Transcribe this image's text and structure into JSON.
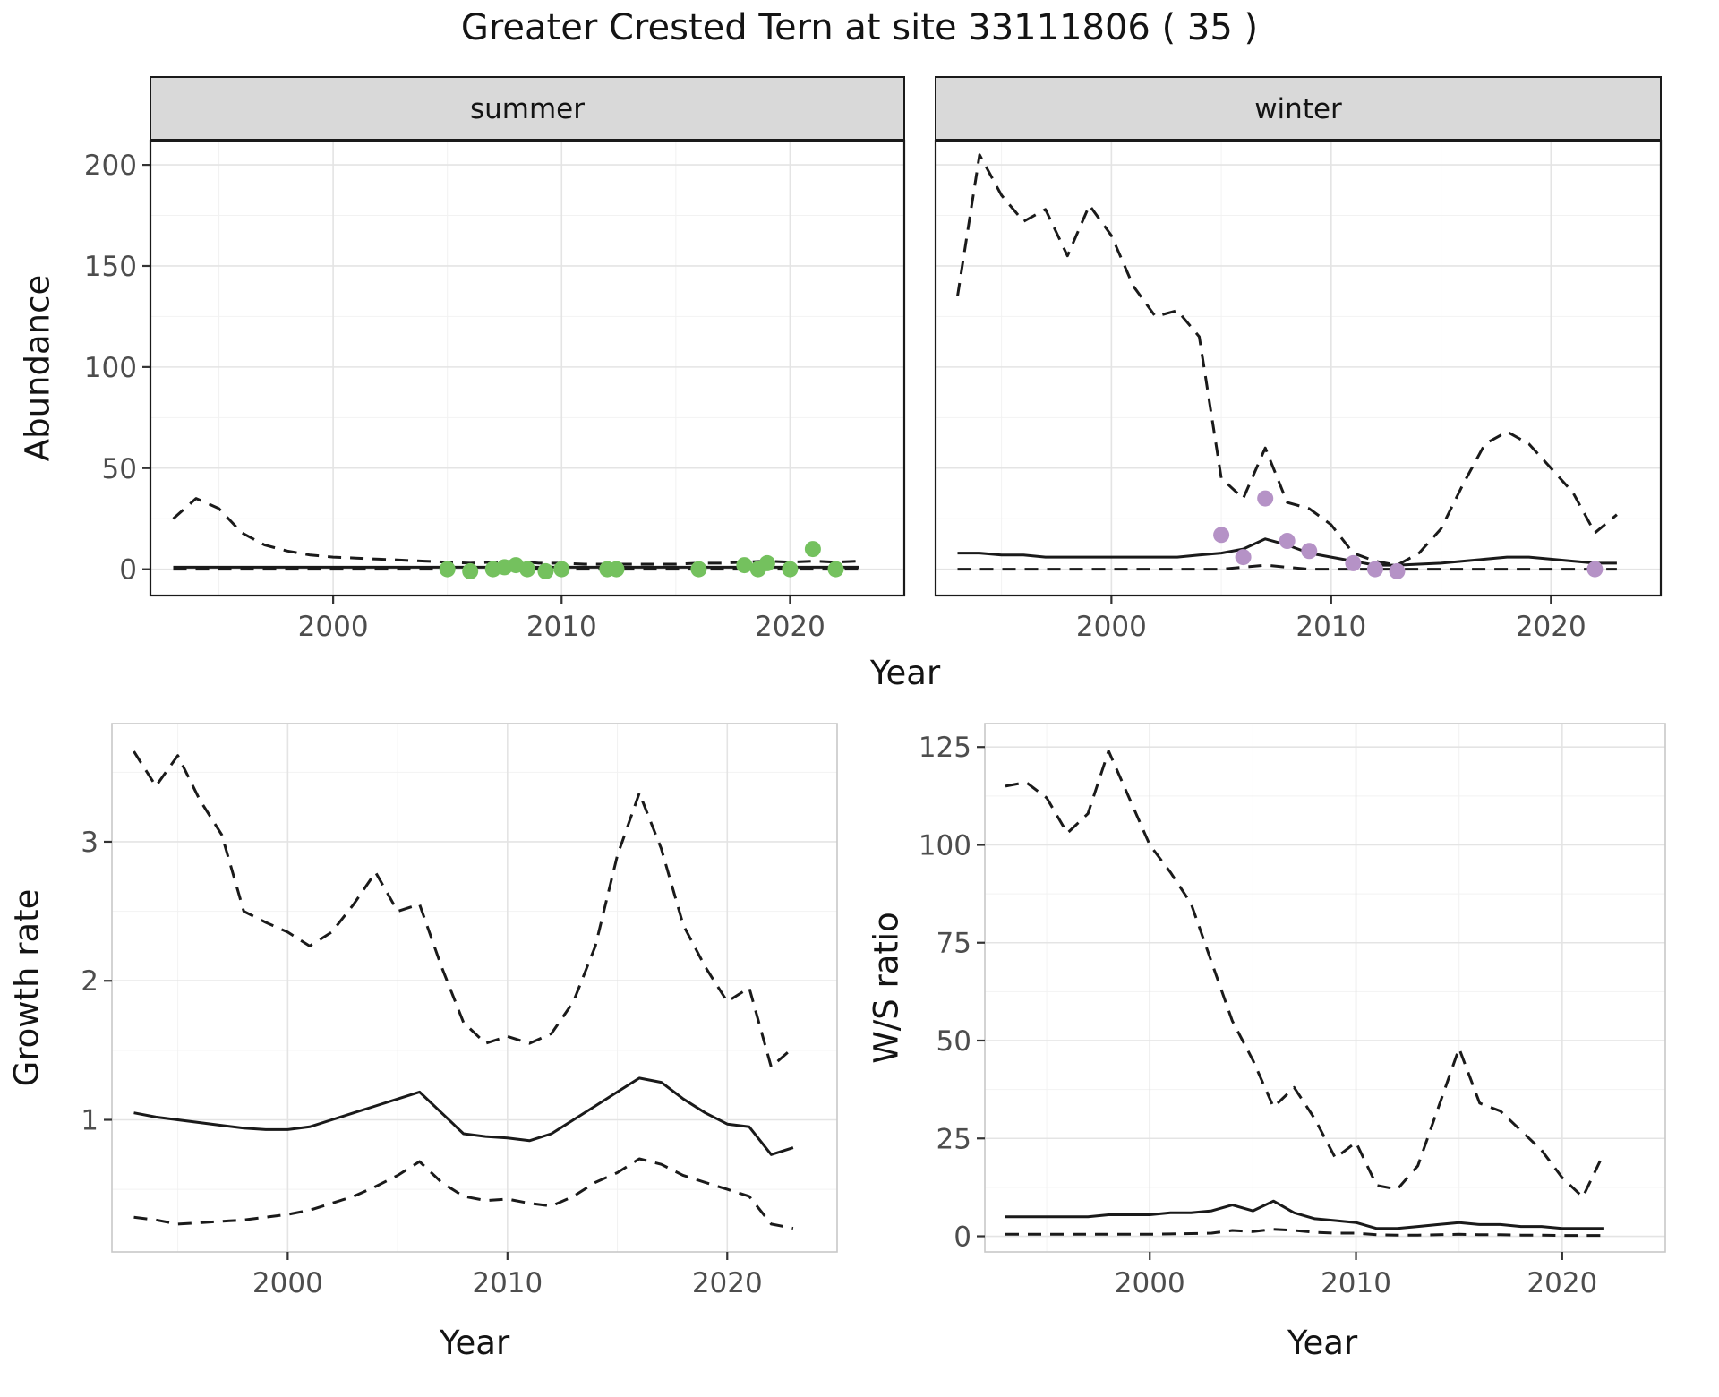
{
  "title": "Greater Crested Tern at site 33111806 ( 35 )",
  "axis_labels": {
    "x": "Year",
    "abundance": "Abundance",
    "growth_rate": "Growth rate",
    "ws_ratio": "W/S ratio"
  },
  "facet_labels": [
    "summer",
    "winter"
  ],
  "colors": {
    "summer_points": "#74c15e",
    "winter_points": "#b592c6",
    "line": "#1a1a1a",
    "strip_bg": "#d9d9d9",
    "strip_border": "#1a1a1a",
    "grid_major": "#e4e4e4",
    "grid_minor": "#f2f2f2",
    "tick_label": "#4d4d4d",
    "axis_tick": "#333333"
  },
  "chart_data": [
    {
      "id": "abundance_summer",
      "type": "line",
      "facet": "summer",
      "xlabel": "Year",
      "ylabel": "Abundance",
      "xlim": [
        1992,
        2025
      ],
      "ylim": [
        -13,
        212
      ],
      "xticks": [
        2000,
        2010,
        2020
      ],
      "yticks": [
        0,
        50,
        100,
        150,
        200
      ],
      "series": [
        {
          "name": "upper_ci",
          "linestyle": "dashed",
          "x": [
            1993,
            1994,
            1995,
            1996,
            1997,
            1998,
            1999,
            2000,
            2001,
            2002,
            2003,
            2004,
            2005,
            2006,
            2007,
            2008,
            2009,
            2010,
            2011,
            2012,
            2013,
            2014,
            2015,
            2016,
            2017,
            2018,
            2019,
            2020,
            2021,
            2022,
            2023
          ],
          "y": [
            25,
            35,
            30,
            18,
            12,
            9,
            7,
            6,
            5.5,
            5,
            4.5,
            4,
            3.5,
            3,
            3.5,
            4,
            3,
            3,
            2.5,
            2.5,
            2.5,
            2.5,
            2.5,
            3,
            3,
            3.5,
            4,
            3.5,
            4,
            3.5,
            4
          ]
        },
        {
          "name": "estimate",
          "linestyle": "solid",
          "x": [
            1993,
            1994,
            1995,
            1996,
            1997,
            1998,
            1999,
            2000,
            2001,
            2002,
            2003,
            2004,
            2005,
            2006,
            2007,
            2008,
            2009,
            2010,
            2011,
            2012,
            2013,
            2014,
            2015,
            2016,
            2017,
            2018,
            2019,
            2020,
            2021,
            2022,
            2023
          ],
          "y": [
            1,
            1,
            1,
            1,
            1,
            1,
            1,
            1,
            1,
            1,
            1,
            1,
            1,
            1,
            1,
            1,
            1,
            1,
            1,
            1,
            1,
            1,
            1,
            1,
            1,
            1,
            1,
            1,
            1,
            1,
            1
          ]
        },
        {
          "name": "lower_ci",
          "linestyle": "dashed",
          "x": [
            1993,
            1994,
            1995,
            1996,
            1997,
            1998,
            1999,
            2000,
            2001,
            2002,
            2003,
            2004,
            2005,
            2006,
            2007,
            2008,
            2009,
            2010,
            2011,
            2012,
            2013,
            2014,
            2015,
            2016,
            2017,
            2018,
            2019,
            2020,
            2021,
            2022,
            2023
          ],
          "y": [
            0,
            0,
            0,
            0,
            0,
            0,
            0,
            0,
            0,
            0,
            0,
            0,
            0,
            0,
            0,
            0,
            0,
            0,
            0,
            0,
            0,
            0,
            0,
            0,
            0,
            0,
            0,
            0,
            0,
            0,
            0
          ]
        }
      ],
      "points": [
        {
          "name": "observed_counts",
          "color_key": "summer_points",
          "x": [
            2005,
            2006,
            2007,
            2007.5,
            2008,
            2008.5,
            2009.3,
            2010,
            2012,
            2012.4,
            2016,
            2018,
            2018.6,
            2019,
            2020,
            2021,
            2022
          ],
          "y": [
            0,
            -1,
            0,
            1,
            2,
            0,
            -1,
            0,
            0,
            0,
            0,
            2,
            0,
            3,
            0,
            10,
            0
          ]
        }
      ]
    },
    {
      "id": "abundance_winter",
      "type": "line",
      "facet": "winter",
      "xlabel": "Year",
      "ylabel": "Abundance",
      "xlim": [
        1992,
        2025
      ],
      "ylim": [
        -13,
        212
      ],
      "xticks": [
        2000,
        2010,
        2020
      ],
      "yticks": [
        0,
        50,
        100,
        150,
        200
      ],
      "series": [
        {
          "name": "upper_ci",
          "linestyle": "dashed",
          "x": [
            1993,
            1994,
            1995,
            1996,
            1997,
            1998,
            1999,
            2000,
            2001,
            2002,
            2003,
            2004,
            2005,
            2006,
            2007,
            2008,
            2009,
            2010,
            2011,
            2012,
            2013,
            2014,
            2015,
            2016,
            2017,
            2018,
            2019,
            2020,
            2021,
            2022,
            2023
          ],
          "y": [
            135,
            205,
            185,
            172,
            178,
            155,
            180,
            165,
            140,
            125,
            128,
            115,
            45,
            35,
            60,
            33,
            30,
            22,
            8,
            4,
            2,
            8,
            20,
            42,
            62,
            68,
            62,
            50,
            38,
            18,
            27
          ]
        },
        {
          "name": "estimate",
          "linestyle": "solid",
          "x": [
            1993,
            1994,
            1995,
            1996,
            1997,
            1998,
            1999,
            2000,
            2001,
            2002,
            2003,
            2004,
            2005,
            2006,
            2007,
            2008,
            2009,
            2010,
            2011,
            2012,
            2013,
            2014,
            2015,
            2016,
            2017,
            2018,
            2019,
            2020,
            2021,
            2022,
            2023
          ],
          "y": [
            8,
            8,
            7,
            7,
            6,
            6,
            6,
            6,
            6,
            6,
            6,
            7,
            8,
            10,
            15,
            12,
            8,
            6,
            4,
            2,
            2,
            2.5,
            3,
            4,
            5,
            6,
            6,
            5,
            4,
            3,
            3
          ]
        },
        {
          "name": "lower_ci",
          "linestyle": "dashed",
          "x": [
            1993,
            1994,
            1995,
            1996,
            1997,
            1998,
            1999,
            2000,
            2001,
            2002,
            2003,
            2004,
            2005,
            2006,
            2007,
            2008,
            2009,
            2010,
            2011,
            2012,
            2013,
            2014,
            2015,
            2016,
            2017,
            2018,
            2019,
            2020,
            2021,
            2022,
            2023
          ],
          "y": [
            0,
            0,
            0,
            0,
            0,
            0,
            0,
            0,
            0,
            0,
            0,
            0,
            0,
            1,
            2,
            1,
            0,
            0,
            0,
            0,
            0,
            0,
            0,
            0,
            0,
            0,
            0,
            0,
            0,
            0,
            0
          ]
        }
      ],
      "points": [
        {
          "name": "observed_counts",
          "color_key": "winter_points",
          "x": [
            2005,
            2006,
            2007,
            2008,
            2009,
            2011,
            2012,
            2013,
            2022
          ],
          "y": [
            17,
            6,
            35,
            14,
            9,
            3,
            0,
            -1,
            0
          ]
        }
      ]
    },
    {
      "id": "growth_rate",
      "type": "line",
      "xlabel": "Year",
      "ylabel": "Growth rate",
      "xlim": [
        1992,
        2025
      ],
      "ylim": [
        0.05,
        3.85
      ],
      "xticks": [
        2000,
        2010,
        2020
      ],
      "yticks": [
        1,
        2,
        3
      ],
      "series": [
        {
          "name": "upper_ci",
          "linestyle": "dashed",
          "x": [
            1993,
            1994,
            1995,
            1996,
            1997,
            1998,
            1999,
            2000,
            2001,
            2002,
            2003,
            2004,
            2005,
            2006,
            2007,
            2008,
            2009,
            2010,
            2011,
            2012,
            2013,
            2014,
            2015,
            2016,
            2017,
            2018,
            2019,
            2020,
            2021,
            2022,
            2023
          ],
          "y": [
            3.65,
            3.4,
            3.62,
            3.3,
            3.05,
            2.5,
            2.42,
            2.35,
            2.25,
            2.35,
            2.55,
            2.78,
            2.5,
            2.55,
            2.1,
            1.7,
            1.55,
            1.6,
            1.55,
            1.62,
            1.85,
            2.25,
            2.9,
            3.35,
            2.95,
            2.4,
            2.1,
            1.85,
            1.95,
            1.38,
            1.52
          ]
        },
        {
          "name": "estimate",
          "linestyle": "solid",
          "x": [
            1993,
            1994,
            1995,
            1996,
            1997,
            1998,
            1999,
            2000,
            2001,
            2002,
            2003,
            2004,
            2005,
            2006,
            2007,
            2008,
            2009,
            2010,
            2011,
            2012,
            2013,
            2014,
            2015,
            2016,
            2017,
            2018,
            2019,
            2020,
            2021,
            2022,
            2023
          ],
          "y": [
            1.05,
            1.02,
            1.0,
            0.98,
            0.96,
            0.94,
            0.93,
            0.93,
            0.95,
            1.0,
            1.05,
            1.1,
            1.15,
            1.2,
            1.05,
            0.9,
            0.88,
            0.87,
            0.85,
            0.9,
            1.0,
            1.1,
            1.2,
            1.3,
            1.27,
            1.15,
            1.05,
            0.97,
            0.95,
            0.75,
            0.8
          ]
        },
        {
          "name": "lower_ci",
          "linestyle": "dashed",
          "x": [
            1993,
            1994,
            1995,
            1996,
            1997,
            1998,
            1999,
            2000,
            2001,
            2002,
            2003,
            2004,
            2005,
            2006,
            2007,
            2008,
            2009,
            2010,
            2011,
            2012,
            2013,
            2014,
            2015,
            2016,
            2017,
            2018,
            2019,
            2020,
            2021,
            2022,
            2023
          ],
          "y": [
            0.3,
            0.28,
            0.25,
            0.26,
            0.27,
            0.28,
            0.3,
            0.32,
            0.35,
            0.4,
            0.45,
            0.52,
            0.6,
            0.7,
            0.55,
            0.45,
            0.42,
            0.43,
            0.4,
            0.38,
            0.45,
            0.55,
            0.62,
            0.72,
            0.68,
            0.6,
            0.55,
            0.5,
            0.45,
            0.25,
            0.22
          ]
        }
      ],
      "points": []
    },
    {
      "id": "ws_ratio",
      "type": "line",
      "xlabel": "Year",
      "ylabel": "W/S ratio",
      "xlim": [
        1992,
        2025
      ],
      "ylim": [
        -4,
        131
      ],
      "xticks": [
        2000,
        2010,
        2020
      ],
      "yticks": [
        0,
        25,
        50,
        75,
        100,
        125
      ],
      "series": [
        {
          "name": "upper_ci",
          "linestyle": "dashed",
          "x": [
            1993,
            1994,
            1995,
            1996,
            1997,
            1998,
            1999,
            2000,
            2001,
            2002,
            2003,
            2004,
            2005,
            2006,
            2007,
            2008,
            2009,
            2010,
            2011,
            2012,
            2013,
            2014,
            2015,
            2016,
            2017,
            2018,
            2019,
            2020,
            2021,
            2022
          ],
          "y": [
            115,
            116,
            112,
            103,
            108,
            124,
            112,
            100,
            93,
            85,
            70,
            55,
            45,
            33,
            38,
            30,
            20,
            24,
            13,
            12,
            18,
            33,
            48,
            34,
            32,
            27,
            22,
            15,
            10,
            21
          ]
        },
        {
          "name": "estimate",
          "linestyle": "solid",
          "x": [
            1993,
            1994,
            1995,
            1996,
            1997,
            1998,
            1999,
            2000,
            2001,
            2002,
            2003,
            2004,
            2005,
            2006,
            2007,
            2008,
            2009,
            2010,
            2011,
            2012,
            2013,
            2014,
            2015,
            2016,
            2017,
            2018,
            2019,
            2020,
            2021,
            2022
          ],
          "y": [
            5,
            5,
            5,
            5,
            5,
            5.5,
            5.5,
            5.5,
            6,
            6,
            6.5,
            8,
            6.5,
            9,
            6,
            4.5,
            4,
            3.5,
            2,
            2,
            2.5,
            3,
            3.5,
            3,
            3,
            2.5,
            2.5,
            2,
            2,
            2
          ]
        },
        {
          "name": "lower_ci",
          "linestyle": "dashed",
          "x": [
            1993,
            1994,
            1995,
            1996,
            1997,
            1998,
            1999,
            2000,
            2001,
            2002,
            2003,
            2004,
            2005,
            2006,
            2007,
            2008,
            2009,
            2010,
            2011,
            2012,
            2013,
            2014,
            2015,
            2016,
            2017,
            2018,
            2019,
            2020,
            2021,
            2022
          ],
          "y": [
            0.5,
            0.5,
            0.5,
            0.5,
            0.5,
            0.5,
            0.5,
            0.5,
            0.6,
            0.7,
            0.8,
            1.5,
            1.2,
            1.8,
            1.5,
            1,
            0.8,
            0.8,
            0.4,
            0.3,
            0.3,
            0.4,
            0.5,
            0.4,
            0.4,
            0.3,
            0.3,
            0.2,
            0.2,
            0.2
          ]
        }
      ],
      "points": []
    }
  ]
}
